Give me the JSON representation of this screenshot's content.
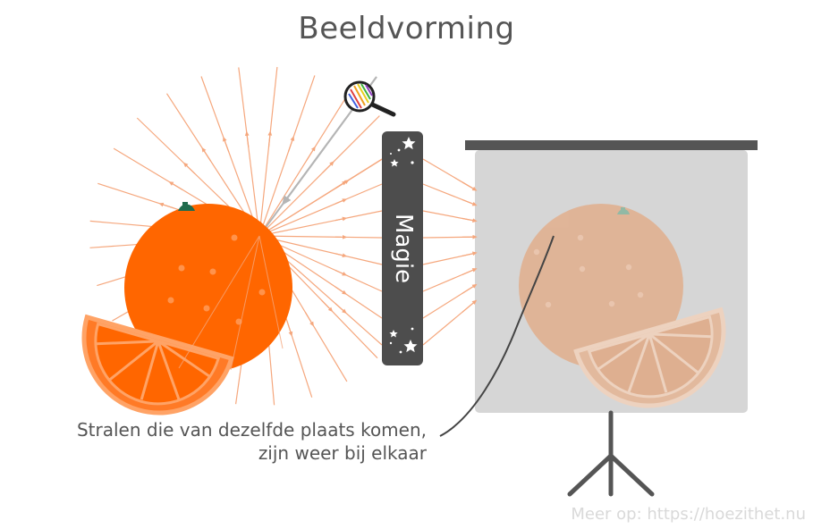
{
  "title": "Beeldvorming",
  "magic_label": "Magie",
  "caption": {
    "line1": "Stralen die van dezelfde plaats komen,",
    "line2": "zijn weer bij elkaar"
  },
  "footer": "Meer op: https://hoezithet.nu",
  "colors": {
    "orange": "#ff6600",
    "orange_slice_light": "#ffa366",
    "ray": "#f5a77d",
    "magic_box": "#4d4d4d",
    "screen": "#d6d6d6",
    "projected_orange": "#e3b394",
    "stand": "#555555",
    "text": "#555555"
  },
  "icons": [
    "magnifier-icon",
    "star-icon",
    "orange-object",
    "projection-screen"
  ]
}
